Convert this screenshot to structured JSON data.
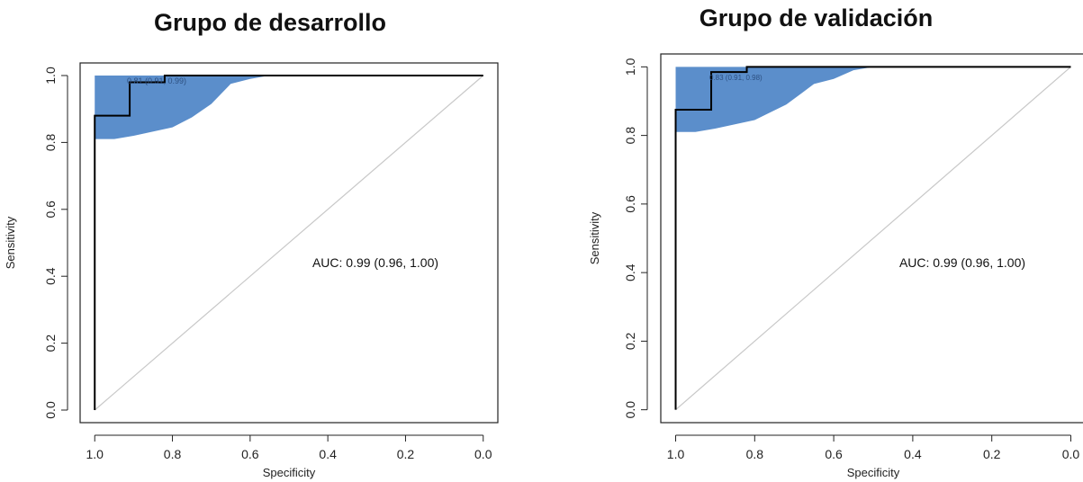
{
  "chart_data": [
    {
      "type": "line",
      "subtype": "roc-curve",
      "title": "Grupo de desarrollo",
      "xlabel": "Specificity",
      "ylabel": "Sensitivity",
      "xlim": [
        1.0,
        0.0
      ],
      "ylim": [
        0.0,
        1.0
      ],
      "x_reversed": true,
      "xticks": [
        "1.0",
        "0.8",
        "0.6",
        "0.4",
        "0.2",
        "0.0"
      ],
      "yticks": [
        "0.0",
        "0.2",
        "0.4",
        "0.6",
        "0.8",
        "1.0"
      ],
      "grid": false,
      "annotation": "AUC: 0.99 (0.96, 1.00)",
      "threshold_label": "0.81 (0.91, 0.99)",
      "colors": {
        "band": "#5b8ecb",
        "curve": "#000000",
        "diagonal": "#c8c8c8"
      },
      "series": [
        {
          "role": "roc",
          "x": [
            1.0,
            1.0,
            1.0,
            0.91,
            0.91,
            0.82,
            0.82,
            0.55,
            0.0
          ],
          "y": [
            0.0,
            0.0,
            0.88,
            0.88,
            0.98,
            0.98,
            1.0,
            1.0,
            1.0
          ]
        },
        {
          "role": "ci-lower",
          "x": [
            1.0,
            0.95,
            0.9,
            0.8,
            0.75,
            0.7,
            0.65,
            0.6,
            0.55
          ],
          "y": [
            0.81,
            0.81,
            0.82,
            0.845,
            0.875,
            0.915,
            0.975,
            0.99,
            1.0
          ]
        },
        {
          "role": "diagonal",
          "x": [
            1.0,
            0.0
          ],
          "y": [
            0.0,
            1.0
          ]
        }
      ]
    },
    {
      "type": "line",
      "subtype": "roc-curve",
      "title": "Grupo de validación",
      "xlabel": "Specificity",
      "ylabel": "Sensitivity",
      "xlim": [
        1.0,
        0.0
      ],
      "ylim": [
        0.0,
        1.0
      ],
      "x_reversed": true,
      "xticks": [
        "1.0",
        "0.8",
        "0.6",
        "0.4",
        "0.2",
        "0.0"
      ],
      "yticks": [
        "0.0",
        "0.2",
        "0.4",
        "0.6",
        "0.8",
        "1.0"
      ],
      "grid": false,
      "annotation": "AUC: 0.99 (0.96, 1.00)",
      "threshold_label": "0.83 (0.91, 0.98)",
      "colors": {
        "band": "#5b8ecb",
        "curve": "#000000",
        "diagonal": "#c8c8c8"
      },
      "series": [
        {
          "role": "roc",
          "x": [
            1.0,
            1.0,
            1.0,
            0.91,
            0.91,
            0.82,
            0.82,
            0.55,
            0.0
          ],
          "y": [
            0.0,
            0.0,
            0.875,
            0.875,
            0.985,
            0.985,
            1.0,
            1.0,
            1.0
          ]
        },
        {
          "role": "ci-lower",
          "x": [
            1.0,
            0.95,
            0.9,
            0.8,
            0.72,
            0.65,
            0.6,
            0.55,
            0.5
          ],
          "y": [
            0.81,
            0.81,
            0.82,
            0.845,
            0.89,
            0.95,
            0.965,
            0.99,
            1.0
          ]
        },
        {
          "role": "diagonal",
          "x": [
            1.0,
            0.0
          ],
          "y": [
            0.0,
            1.0
          ]
        }
      ]
    }
  ]
}
